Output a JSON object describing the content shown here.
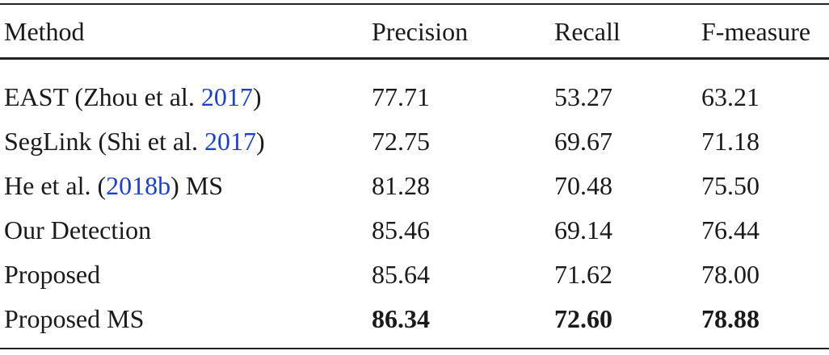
{
  "table": {
    "header": [
      "Method",
      "Precision",
      "Recall",
      "F-measure"
    ],
    "rows": [
      [
        {
          "before": "EAST (Zhou et al. ",
          "link": "2017",
          "after": ")"
        },
        "77.71",
        "53.27",
        "63.21"
      ],
      [
        {
          "before": "SegLink (Shi et al. ",
          "link": "2017",
          "after": ")"
        },
        "72.75",
        "69.67",
        "71.18"
      ],
      [
        {
          "before": "He et al. (",
          "link": "2018b",
          "after": ") MS"
        },
        "81.28",
        "70.48",
        "75.50"
      ],
      [
        "Our Detection",
        "85.46",
        "69.14",
        "76.44"
      ],
      [
        "Proposed",
        "85.64",
        "71.62",
        "78.00"
      ],
      [
        "Proposed MS",
        "86.34",
        "72.60",
        "78.88"
      ]
    ]
  }
}
